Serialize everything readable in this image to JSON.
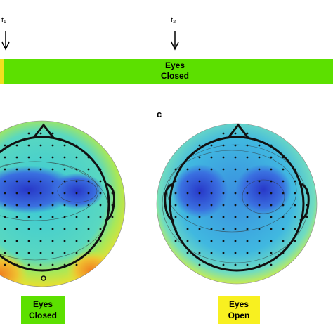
{
  "markers": [
    {
      "label": "t₁"
    },
    {
      "label": "t₂"
    }
  ],
  "timeline": {
    "lines": [
      "Eyes",
      "Closed"
    ]
  },
  "panel_letter": "c",
  "conditions": [
    {
      "lines": [
        "Eyes",
        "Closed"
      ]
    },
    {
      "lines": [
        "Eyes",
        "Open"
      ]
    }
  ]
}
